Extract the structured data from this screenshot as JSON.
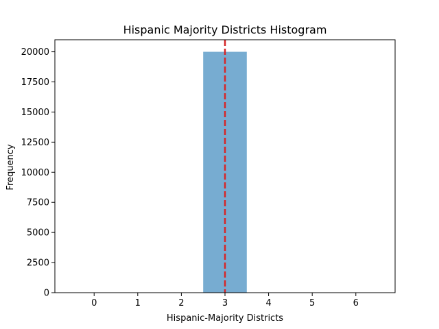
{
  "chart_data": {
    "type": "bar",
    "title": "Hispanic Majority Districts Histogram",
    "xlabel": "Hispanic-Majority Districts",
    "ylabel": "Frequency",
    "x_ticks": [
      0,
      1,
      2,
      3,
      4,
      5,
      6
    ],
    "y_ticks": [
      0,
      2500,
      5000,
      7500,
      10000,
      12500,
      15000,
      17500,
      20000
    ],
    "xlim": [
      -0.9,
      6.9
    ],
    "ylim": [
      0,
      21000
    ],
    "bins": [
      {
        "start": 2.5,
        "end": 3.5,
        "value": 20000
      }
    ],
    "reference_line": {
      "x": 3,
      "style": "dashed",
      "color": "#d62728"
    },
    "bar_color": "#4a90c2",
    "bar_opacity": 0.75,
    "grid": false,
    "legend": "none"
  }
}
